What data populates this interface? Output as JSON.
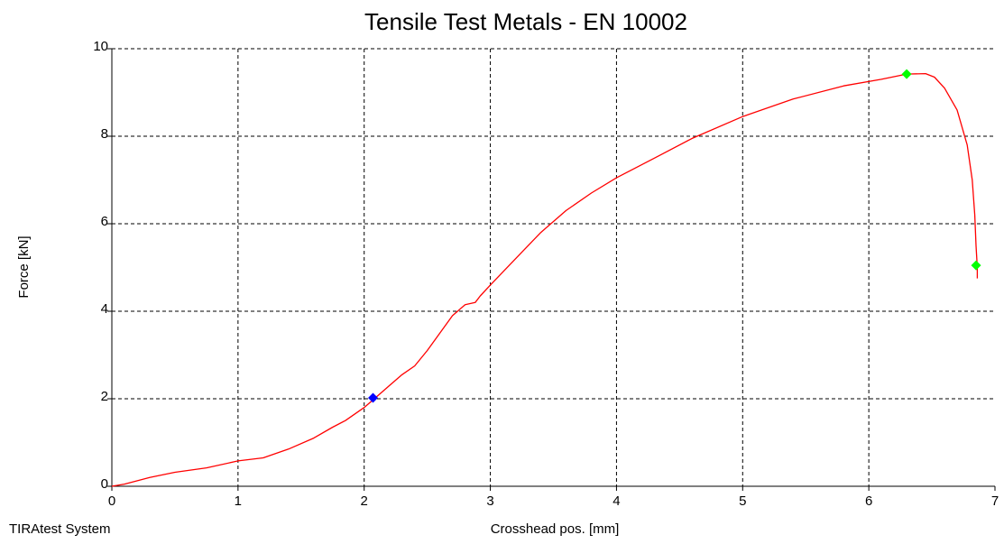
{
  "chart_data": {
    "type": "line",
    "title": "Tensile Test Metals - EN 10002",
    "xlabel": "Crosshead pos. [mm]",
    "ylabel": "Force [kN]",
    "xlim": [
      0,
      7
    ],
    "ylim": [
      0,
      10
    ],
    "xticks": [
      "0",
      "1",
      "2",
      "3",
      "4",
      "5",
      "6",
      "7"
    ],
    "yticks": [
      "0",
      "2",
      "4",
      "6",
      "8",
      "10"
    ],
    "grid": true,
    "grid_style": "dashed",
    "series": [
      {
        "color": "#ff0000",
        "x": [
          0,
          0.1,
          0.3,
          0.5,
          0.75,
          1.0,
          1.2,
          1.4,
          1.6,
          1.75,
          1.85,
          2.0,
          2.1,
          2.2,
          2.3,
          2.4,
          2.5,
          2.6,
          2.7,
          2.8,
          2.88,
          2.92,
          3.0,
          3.2,
          3.4,
          3.6,
          3.8,
          4.0,
          4.3,
          4.6,
          5.0,
          5.4,
          5.8,
          6.1,
          6.3,
          6.45,
          6.52,
          6.6,
          6.7,
          6.78,
          6.82,
          6.84,
          6.85,
          6.86,
          6.86
        ],
        "y": [
          0.0,
          0.05,
          0.2,
          0.32,
          0.42,
          0.58,
          0.65,
          0.85,
          1.1,
          1.35,
          1.5,
          1.8,
          2.05,
          2.3,
          2.55,
          2.75,
          3.1,
          3.5,
          3.9,
          4.15,
          4.2,
          4.35,
          4.6,
          5.2,
          5.8,
          6.3,
          6.7,
          7.05,
          7.5,
          7.95,
          8.45,
          8.85,
          9.15,
          9.3,
          9.42,
          9.43,
          9.35,
          9.1,
          8.6,
          7.8,
          7.0,
          6.2,
          5.5,
          5.0,
          4.75
        ]
      }
    ],
    "markers": [
      {
        "x": 2.07,
        "y": 2.02,
        "color": "#0000ff"
      },
      {
        "x": 6.3,
        "y": 9.42,
        "color": "#00ff00"
      },
      {
        "x": 6.85,
        "y": 5.05,
        "color": "#00ff00"
      }
    ]
  },
  "footer": {
    "system_label": "TIRAtest System"
  }
}
